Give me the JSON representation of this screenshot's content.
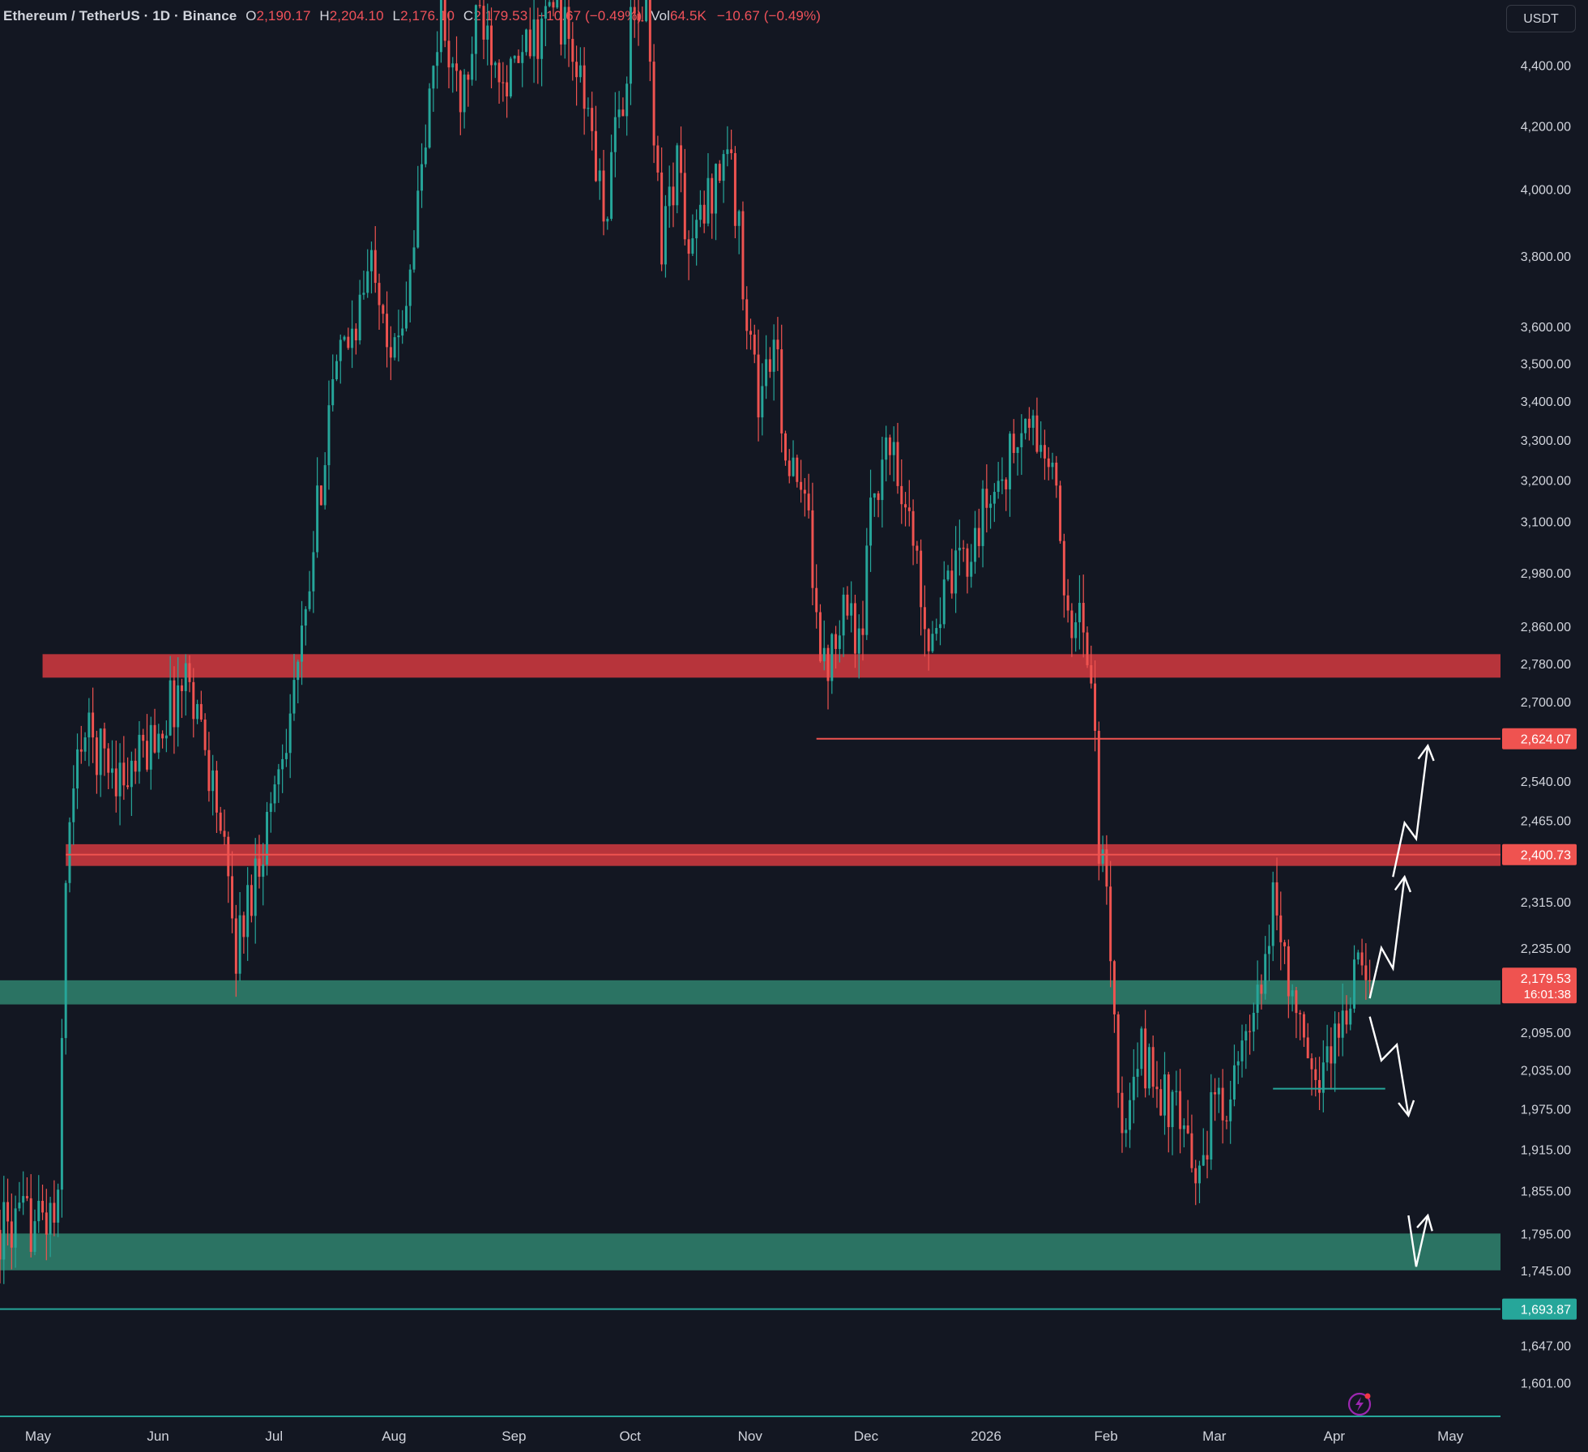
{
  "legend": {
    "symbol": "Ethereum / TetherUS · 1D · Binance",
    "o_label": "O",
    "o": "2,190.17",
    "h_label": "H",
    "h": "2,204.10",
    "l_label": "L",
    "l": "2,176.10",
    "c_label": "C",
    "c": "2,179.53",
    "change": "−10.67 (−0.49%)",
    "vol_label": "Vol",
    "vol": "64.5K",
    "vol_change": "−10.67 (−0.49%)"
  },
  "unit_label": "USDT",
  "colors": {
    "background": "#131722",
    "up": "#26a69a",
    "down": "#ef5350",
    "resistance_zone": "#c5373e",
    "support_zone": "#2f7d6a",
    "axis_text": "#d1d4dc",
    "projection": "#ffffff"
  },
  "chart_data": {
    "type": "candlestick",
    "y_scale": "log",
    "ylim": [
      1560,
      4620
    ],
    "x_start": "2025-04-22",
    "x_end": "2026-05-15",
    "y_ticks": [
      "4,400.00",
      "4,200.00",
      "4,000.00",
      "3,800.00",
      "3,600.00",
      "3,500.00",
      "3,400.00",
      "3,300.00",
      "3,200.00",
      "3,100.00",
      "2,980.00",
      "2,860.00",
      "2,780.00",
      "2,700.00",
      "2,540.00",
      "2,465.00",
      "2,315.00",
      "2,235.00",
      "2,095.00",
      "2,035.00",
      "1,975.00",
      "1,915.00",
      "1,855.00",
      "1,795.00",
      "1,745.00",
      "1,647.00",
      "1,601.00"
    ],
    "x_ticks": [
      {
        "label": "May",
        "date": "2025-05-01"
      },
      {
        "label": "Jun",
        "date": "2025-06-01"
      },
      {
        "label": "Jul",
        "date": "2025-07-01"
      },
      {
        "label": "Aug",
        "date": "2025-08-01"
      },
      {
        "label": "Sep",
        "date": "2025-09-01"
      },
      {
        "label": "Oct",
        "date": "2025-10-01"
      },
      {
        "label": "Nov",
        "date": "2025-11-01"
      },
      {
        "label": "Dec",
        "date": "2025-12-01"
      },
      {
        "label": "2026",
        "date": "2026-01-01"
      },
      {
        "label": "Feb",
        "date": "2026-02-01"
      },
      {
        "label": "Mar",
        "date": "2026-03-01"
      },
      {
        "label": "Apr",
        "date": "2026-04-01"
      },
      {
        "label": "May",
        "date": "2026-05-01"
      }
    ],
    "price_anchors": [
      [
        "2025-04-22",
        1800
      ],
      [
        "2025-05-07",
        1820
      ],
      [
        "2025-05-09",
        2380
      ],
      [
        "2025-05-13",
        2640
      ],
      [
        "2025-05-25",
        2540
      ],
      [
        "2025-06-10",
        2760
      ],
      [
        "2025-06-17",
        2500
      ],
      [
        "2025-06-22",
        2230
      ],
      [
        "2025-06-30",
        2460
      ],
      [
        "2025-07-10",
        2860
      ],
      [
        "2025-07-16",
        3400
      ],
      [
        "2025-07-28",
        3800
      ],
      [
        "2025-08-02",
        3500
      ],
      [
        "2025-08-08",
        3950
      ],
      [
        "2025-08-14",
        4600
      ],
      [
        "2025-08-19",
        4250
      ],
      [
        "2025-08-24",
        4580
      ],
      [
        "2025-09-01",
        4350
      ],
      [
        "2025-09-13",
        4620
      ],
      [
        "2025-09-22",
        4180
      ],
      [
        "2025-09-25",
        3900
      ],
      [
        "2025-10-02",
        4500
      ],
      [
        "2025-10-06",
        4620
      ],
      [
        "2025-10-10",
        3850
      ],
      [
        "2025-10-14",
        4100
      ],
      [
        "2025-10-17",
        3800
      ],
      [
        "2025-10-27",
        4150
      ],
      [
        "2025-11-04",
        3400
      ],
      [
        "2025-11-08",
        3550
      ],
      [
        "2025-11-12",
        3220
      ],
      [
        "2025-11-17",
        3100
      ],
      [
        "2025-11-21",
        2760
      ],
      [
        "2025-11-26",
        2940
      ],
      [
        "2025-12-01",
        2800
      ],
      [
        "2025-12-03",
        3180
      ],
      [
        "2025-12-09",
        3300
      ],
      [
        "2025-12-18",
        2850
      ],
      [
        "2025-12-24",
        2950
      ],
      [
        "2026-01-05",
        3200
      ],
      [
        "2026-01-13",
        3340
      ],
      [
        "2026-01-19",
        3220
      ],
      [
        "2026-01-22",
        2940
      ],
      [
        "2026-01-26",
        2860
      ],
      [
        "2026-01-29",
        2790
      ],
      [
        "2026-01-31",
        2420
      ],
      [
        "2026-02-03",
        2250
      ],
      [
        "2026-02-06",
        1910
      ],
      [
        "2026-02-11",
        2060
      ],
      [
        "2026-02-22",
        1940
      ],
      [
        "2026-02-24",
        1860
      ],
      [
        "2026-03-01",
        1960
      ],
      [
        "2026-03-08",
        2030
      ],
      [
        "2026-03-15",
        2180
      ],
      [
        "2026-03-17",
        2340
      ],
      [
        "2026-03-22",
        2150
      ],
      [
        "2026-03-27",
        2010
      ],
      [
        "2026-03-31",
        2060
      ],
      [
        "2026-04-05",
        2130
      ],
      [
        "2026-04-07",
        2200
      ],
      [
        "2026-04-11",
        2179.53
      ]
    ],
    "zones": [
      {
        "type": "resistance",
        "from": 2750,
        "to": 2800,
        "x_start": "2025-05-03",
        "x_end": "2026-05-20"
      },
      {
        "type": "resistance",
        "from": 2380,
        "to": 2420,
        "x_start": "2025-05-09",
        "x_end": "2026-05-20"
      },
      {
        "type": "support",
        "from": 2140,
        "to": 2180,
        "x_start": "2025-04-22",
        "x_end": "2026-05-20"
      },
      {
        "type": "support",
        "from": 1745,
        "to": 1795,
        "x_start": "2025-04-22",
        "x_end": "2026-05-20"
      }
    ],
    "levels": [
      {
        "price": 2624.07,
        "label": "2,624.07",
        "color": "#ef5350",
        "x_start": "2025-11-19"
      },
      {
        "price": 2400.73,
        "label": "2,400.73",
        "color": "#ef5350",
        "x_start": "2025-05-09"
      },
      {
        "price": 1693.87,
        "label": "1,693.87",
        "color": "#26a69a",
        "x_start": "2025-04-22"
      },
      {
        "price": 2006,
        "color": "#26a69a",
        "x_start": "2026-03-17",
        "x_end": "2026-04-15"
      }
    ],
    "last_price": {
      "label": "2,179.53",
      "countdown": "16:01:38"
    },
    "projections": [
      [
        [
          "2026-04-11",
          2150
        ],
        [
          "2026-04-14",
          2235
        ],
        [
          "2026-04-17",
          2200
        ],
        [
          "2026-04-20",
          2360
        ]
      ],
      [
        [
          "2026-04-17",
          2360
        ],
        [
          "2026-04-20",
          2460
        ],
        [
          "2026-04-23",
          2430
        ],
        [
          "2026-04-26",
          2610
        ]
      ],
      [
        [
          "2026-04-11",
          2120
        ],
        [
          "2026-04-14",
          2050
        ],
        [
          "2026-04-18",
          2075
        ],
        [
          "2026-04-21",
          1965
        ]
      ],
      [
        [
          "2026-04-21",
          1820
        ],
        [
          "2026-04-23",
          1750
        ],
        [
          "2026-04-26",
          1820
        ]
      ]
    ]
  }
}
